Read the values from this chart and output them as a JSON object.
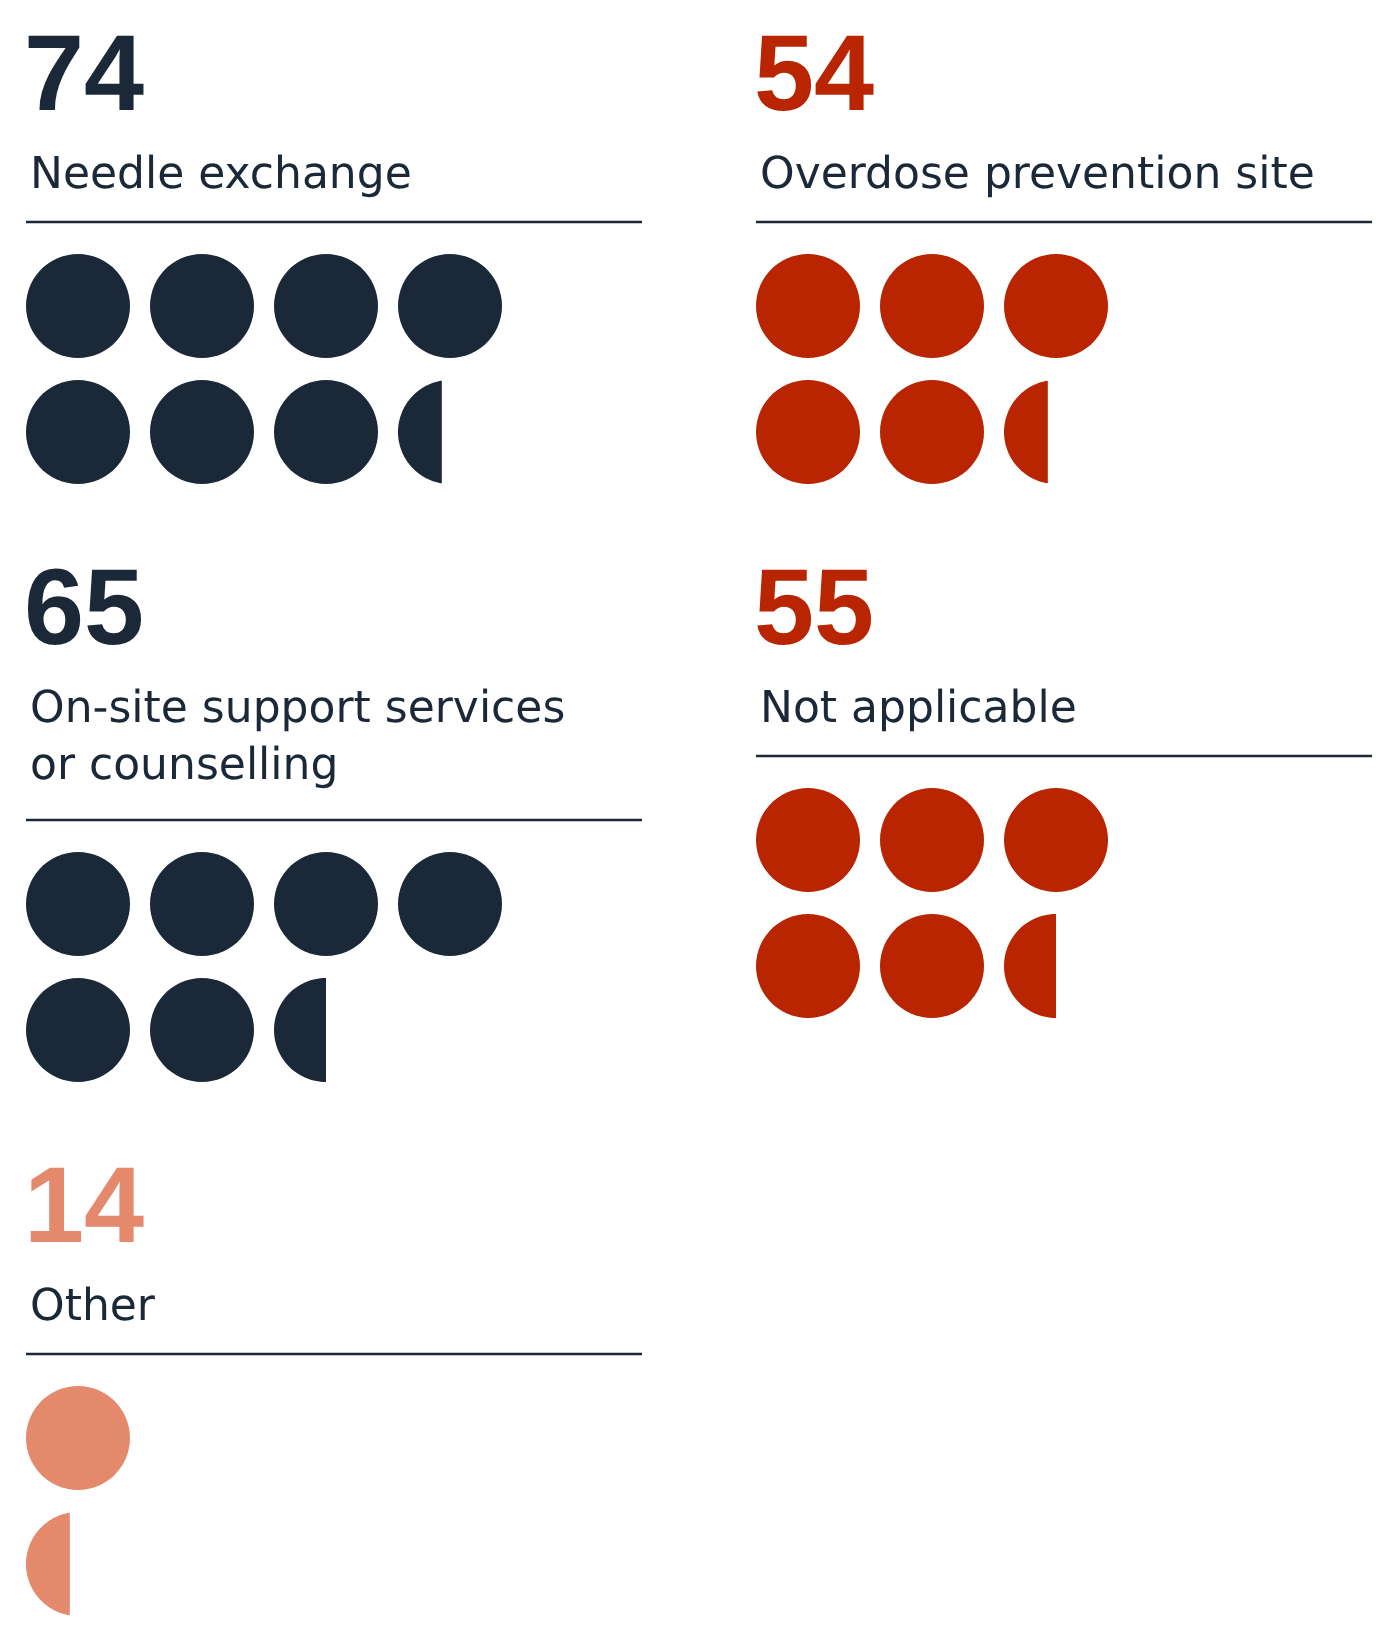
{
  "chart_data": {
    "type": "other",
    "categories": [
      "Needle exchange",
      "Overdose prevention site",
      "On-site support services or counselling",
      "Not applicable",
      "Other"
    ],
    "values": [
      74,
      54,
      65,
      55,
      14
    ],
    "colors": [
      "#1b2838",
      "#b82500",
      "#1b2838",
      "#b82500",
      "#e4896c"
    ],
    "data_labels": true
  }
}
